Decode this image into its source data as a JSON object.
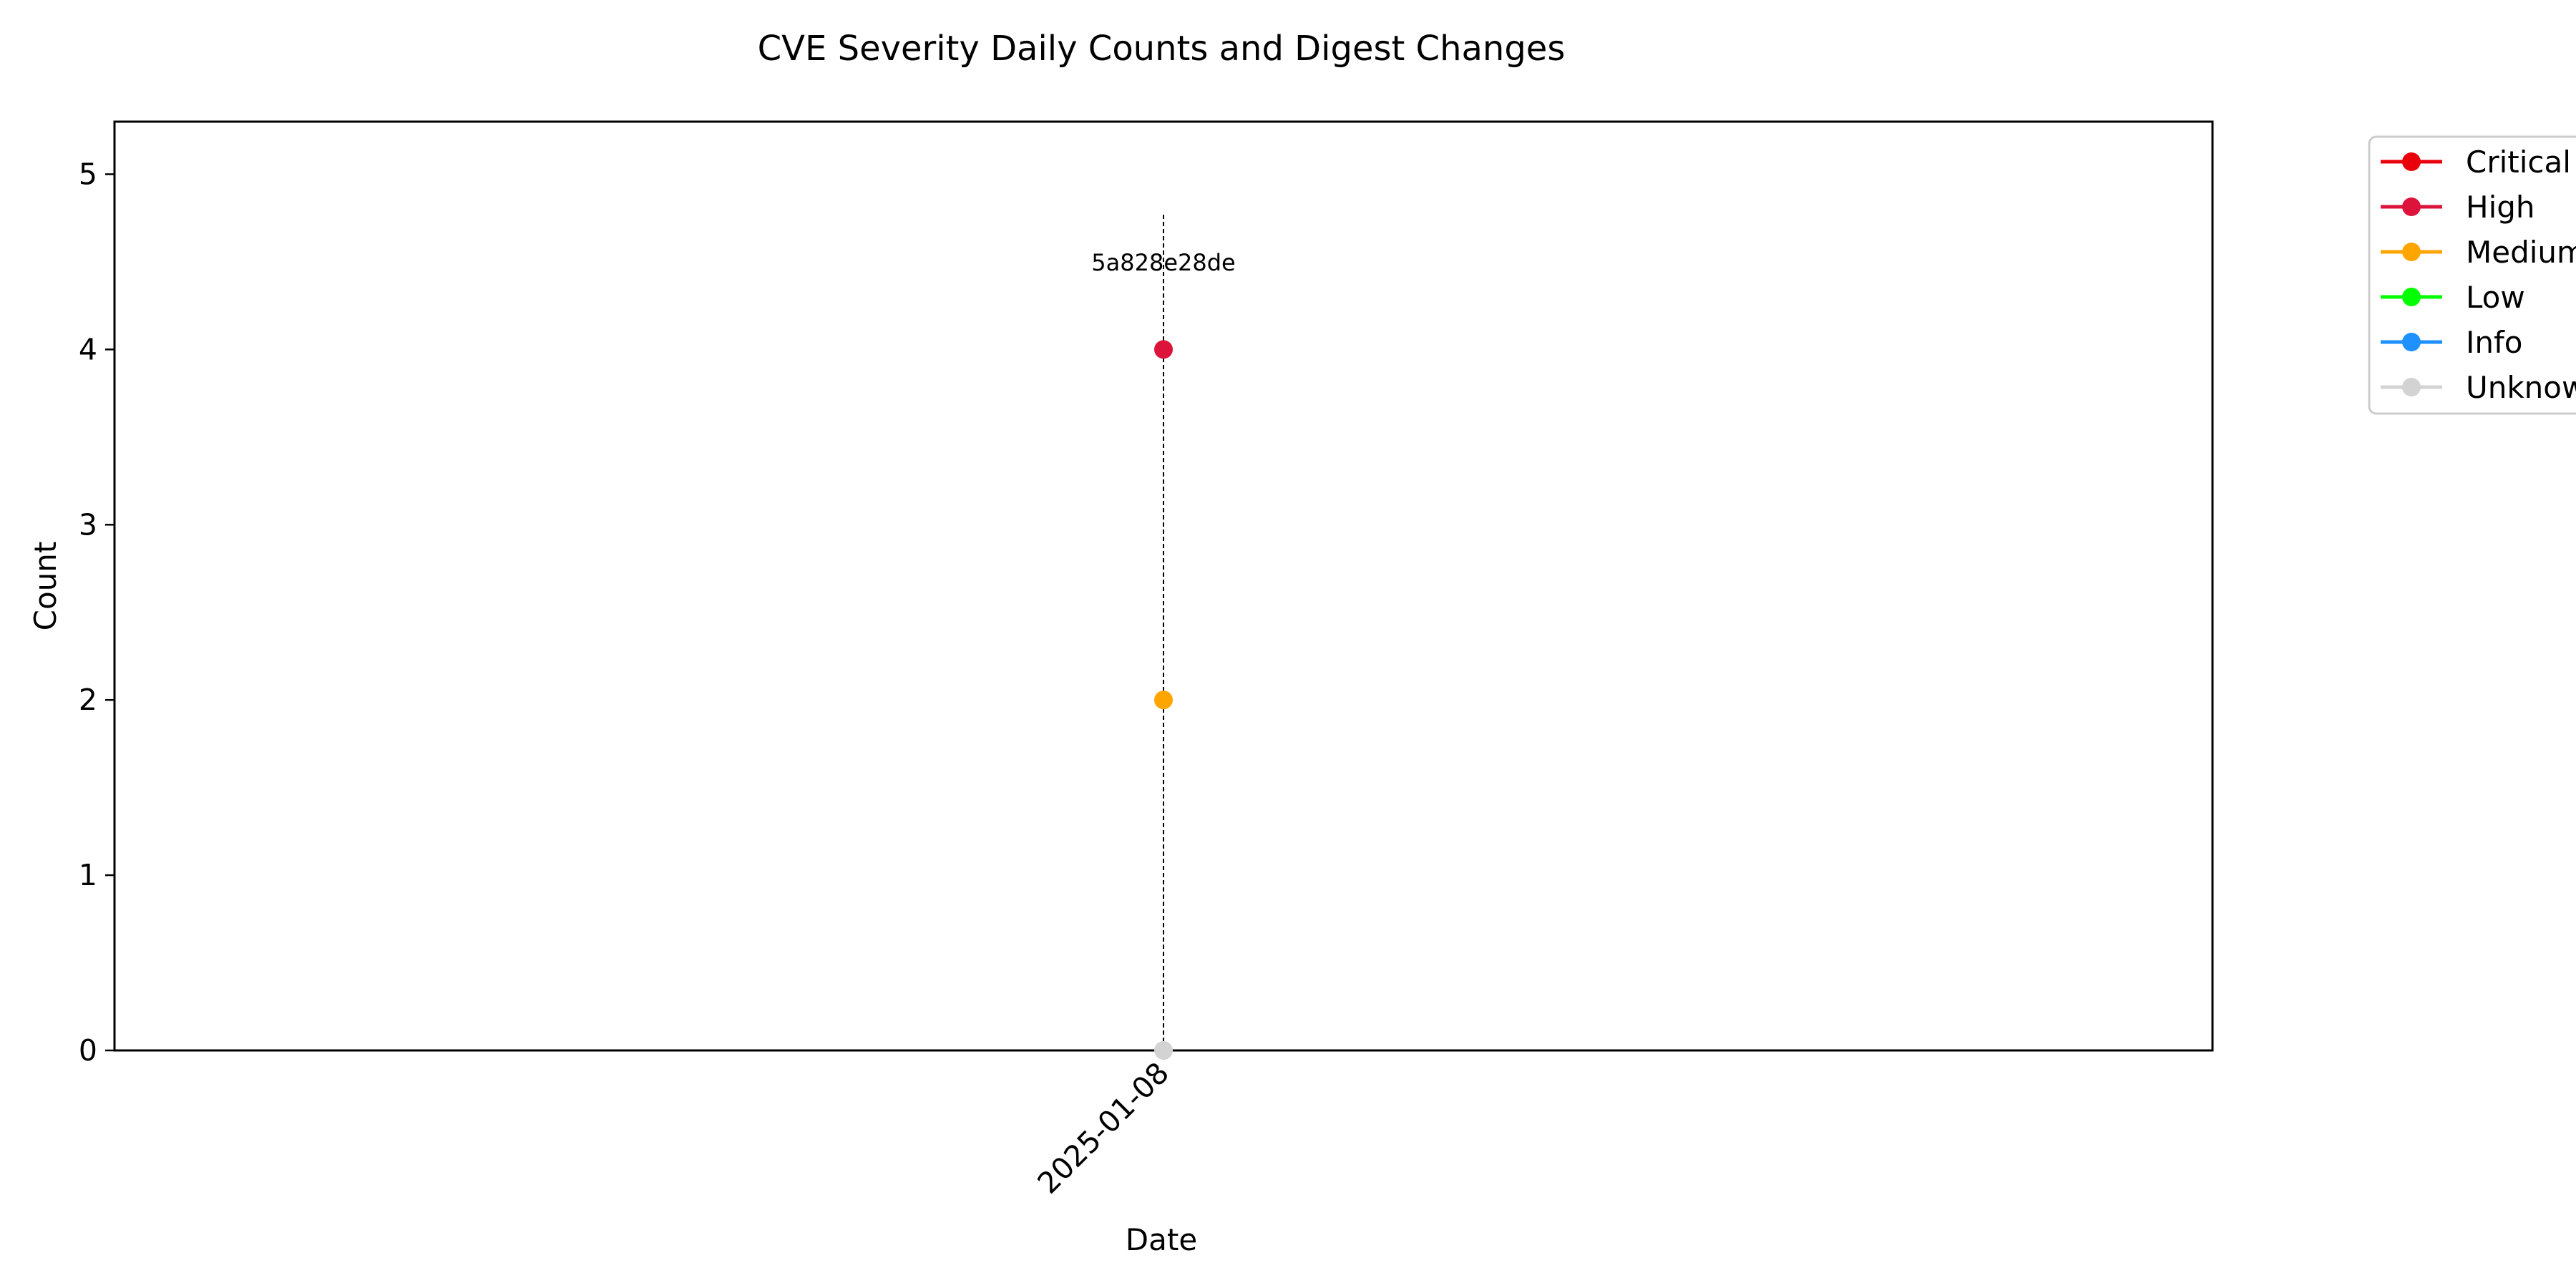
{
  "chart_data": {
    "type": "line",
    "title": "CVE Severity Daily Counts and Digest Changes",
    "xlabel": "Date",
    "ylabel": "Count",
    "x": [
      "2025-01-08"
    ],
    "x_tick_labels": [
      "2025-01-08"
    ],
    "ylim": [
      0,
      5.3
    ],
    "y_ticks": [
      0,
      1,
      2,
      3,
      4,
      5
    ],
    "grid": false,
    "legend_position": "outside top-right",
    "series": [
      {
        "name": "Critical",
        "color": "#e8000b",
        "values": [
          null
        ]
      },
      {
        "name": "High",
        "color": "#dc143c",
        "values": [
          4
        ]
      },
      {
        "name": "Medium",
        "color": "#ffa500",
        "values": [
          2
        ]
      },
      {
        "name": "Low",
        "color": "#00ff00",
        "values": [
          null
        ]
      },
      {
        "name": "Info",
        "color": "#1e90ff",
        "values": [
          null
        ]
      },
      {
        "name": "Unknown",
        "color": "#d3d3d3",
        "values": [
          0
        ]
      }
    ],
    "annotations": [
      {
        "x": "2025-01-08",
        "label": "5a828e28de",
        "style": "dashed vertical line"
      }
    ]
  }
}
